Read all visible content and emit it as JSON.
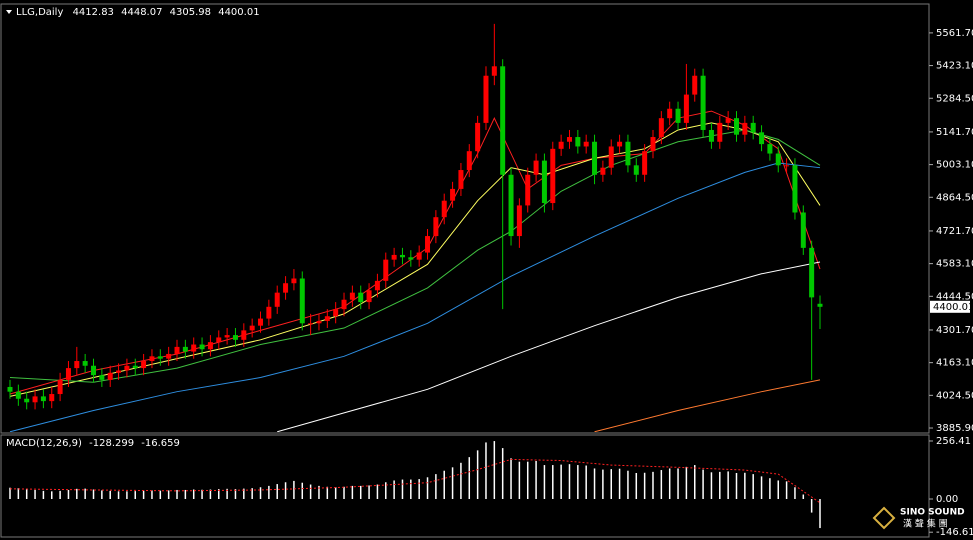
{
  "chart_data": {
    "type": "candlestick",
    "title": "LLG,Daily",
    "up_color": "#ff0000",
    "down_color": "#00c800",
    "open": [
      4060,
      4040,
      4010,
      3995,
      4020,
      4000,
      4030,
      4090,
      4140,
      4170,
      4150,
      4110,
      4090,
      4120,
      4130,
      4150,
      4140,
      4170,
      4190,
      4180,
      4200,
      4230,
      4210,
      4240,
      4220,
      4250,
      4270,
      4280,
      4260,
      4300,
      4320,
      4350,
      4400,
      4460,
      4500,
      4520,
      4330,
      4330,
      4340,
      4360,
      4390,
      4430,
      4460,
      4420,
      4470,
      4510,
      4600,
      4620,
      4610,
      4600,
      4630,
      4700,
      4780,
      4850,
      4900,
      4980,
      5060,
      5180,
      5380,
      5420,
      4960,
      4700,
      4830,
      4960,
      5020,
      4840,
      5070,
      5100,
      5120,
      5080,
      5100,
      4960,
      4990,
      5080,
      5100,
      5000,
      4960,
      5060,
      5120,
      5200,
      5240,
      5180,
      5300,
      5380,
      5150,
      5100,
      5180,
      5200,
      5130,
      5180,
      5140,
      5090,
      5050,
      5000,
      5000,
      4800,
      4650,
      4412.83
    ],
    "high": [
      4090,
      4070,
      4040,
      4050,
      4050,
      4060,
      4120,
      4170,
      4230,
      4200,
      4180,
      4140,
      4150,
      4160,
      4180,
      4180,
      4200,
      4220,
      4220,
      4230,
      4260,
      4260,
      4270,
      4270,
      4280,
      4300,
      4310,
      4310,
      4330,
      4350,
      4380,
      4430,
      4490,
      4530,
      4560,
      4550,
      4370,
      4370,
      4390,
      4420,
      4460,
      4490,
      4490,
      4500,
      4540,
      4630,
      4650,
      4650,
      4640,
      4660,
      4730,
      4810,
      4880,
      4930,
      5010,
      5090,
      5210,
      5420,
      5600,
      5450,
      4990,
      4860,
      4990,
      5050,
      5050,
      5100,
      5130,
      5150,
      5150,
      5130,
      5130,
      5020,
      5110,
      5130,
      5130,
      5030,
      5090,
      5150,
      5230,
      5270,
      5270,
      5430,
      5410,
      5410,
      5180,
      5210,
      5230,
      5230,
      5210,
      5210,
      5170,
      5120,
      5080,
      5030,
      5030,
      4830,
      4680,
      4448.07
    ],
    "low": [
      4010,
      3980,
      3965,
      3965,
      3970,
      3970,
      4000,
      4060,
      4110,
      4120,
      4080,
      4060,
      4060,
      4090,
      4100,
      4110,
      4110,
      4140,
      4150,
      4150,
      4170,
      4180,
      4180,
      4190,
      4190,
      4220,
      4240,
      4230,
      4230,
      4270,
      4290,
      4320,
      4370,
      4430,
      4470,
      4300,
      4280,
      4300,
      4310,
      4330,
      4360,
      4400,
      4390,
      4390,
      4440,
      4480,
      4570,
      4580,
      4570,
      4570,
      4600,
      4670,
      4750,
      4820,
      4870,
      4950,
      5030,
      5150,
      5340,
      4390,
      4660,
      4650,
      4800,
      4930,
      4800,
      4810,
      5040,
      5070,
      5050,
      5050,
      4920,
      4930,
      4960,
      5050,
      4970,
      4930,
      4930,
      5030,
      5090,
      5170,
      5150,
      5150,
      5270,
      5120,
      5070,
      5070,
      5150,
      5100,
      5100,
      5110,
      5060,
      5020,
      4970,
      4970,
      4770,
      4620,
      4090,
      4305.98
    ],
    "close": [
      4040,
      4010,
      3995,
      4020,
      4000,
      4030,
      4090,
      4140,
      4170,
      4150,
      4110,
      4090,
      4120,
      4130,
      4150,
      4140,
      4170,
      4190,
      4180,
      4200,
      4230,
      4210,
      4240,
      4220,
      4250,
      4270,
      4280,
      4260,
      4300,
      4320,
      4350,
      4400,
      4460,
      4500,
      4520,
      4330,
      4330,
      4340,
      4360,
      4390,
      4430,
      4460,
      4420,
      4470,
      4510,
      4600,
      4620,
      4610,
      4600,
      4630,
      4700,
      4780,
      4850,
      4900,
      4980,
      5060,
      5180,
      5380,
      5420,
      4960,
      4700,
      4830,
      4960,
      5020,
      4840,
      5070,
      5100,
      5120,
      5080,
      5100,
      4960,
      4990,
      5080,
      5100,
      5000,
      4960,
      5060,
      5120,
      5200,
      5240,
      5180,
      5300,
      5380,
      5150,
      5100,
      5180,
      5200,
      5130,
      5180,
      5140,
      5090,
      5050,
      5000,
      5000,
      4800,
      4650,
      4440,
      4400.01
    ],
    "ylim": [
      3869,
      5680
    ],
    "yticks": [
      {
        "value": 5561.7,
        "label": "5561.70"
      },
      {
        "value": 5423.1,
        "label": "5423.10"
      },
      {
        "value": 5284.5,
        "label": "5284.50"
      },
      {
        "value": 5141.7,
        "label": "5141.70"
      },
      {
        "value": 5003.1,
        "label": "5003.10"
      },
      {
        "value": 4864.5,
        "label": "4864.50"
      },
      {
        "value": 4721.7,
        "label": "4721.70"
      },
      {
        "value": 4583.1,
        "label": "4583.10"
      },
      {
        "value": 4444.5,
        "label": "4444.50"
      },
      {
        "value": 4301.7,
        "label": "4301.70"
      },
      {
        "value": 4163.1,
        "label": "4163.10"
      },
      {
        "value": 4024.5,
        "label": "4024.50"
      },
      {
        "value": 3885.9,
        "label": "3885.90"
      }
    ],
    "ma": [
      {
        "color": "#ff2020",
        "x": [
          0,
          10,
          20,
          30,
          40,
          50,
          56,
          58,
          62,
          66,
          70,
          76,
          80,
          84,
          88,
          92,
          97
        ],
        "values": [
          4030,
          4130,
          4200,
          4300,
          4400,
          4650,
          5050,
          5200,
          4900,
          5000,
          5030,
          5050,
          5200,
          5230,
          5170,
          5070,
          4560
        ]
      },
      {
        "color": "#ffff60",
        "x": [
          0,
          10,
          20,
          30,
          40,
          50,
          56,
          60,
          64,
          70,
          76,
          80,
          84,
          88,
          92,
          97
        ],
        "values": [
          4020,
          4100,
          4180,
          4260,
          4370,
          4580,
          4850,
          4990,
          4960,
          5030,
          5070,
          5150,
          5180,
          5150,
          5100,
          4830
        ]
      },
      {
        "color": "#40c040",
        "x": [
          0,
          10,
          20,
          30,
          40,
          50,
          56,
          60,
          66,
          72,
          80,
          88,
          92,
          97
        ],
        "values": [
          4100,
          4080,
          4140,
          4240,
          4310,
          4480,
          4640,
          4720,
          4890,
          5000,
          5100,
          5150,
          5110,
          5000
        ]
      },
      {
        "color": "#2e8ee0",
        "x": [
          0,
          10,
          20,
          30,
          40,
          50,
          60,
          70,
          80,
          88,
          92,
          97
        ],
        "values": [
          3870,
          3960,
          4040,
          4100,
          4190,
          4330,
          4530,
          4700,
          4860,
          4970,
          5010,
          4990
        ]
      },
      {
        "color": "#ffffff",
        "x": [
          32,
          40,
          50,
          60,
          70,
          80,
          90,
          97
        ],
        "values": [
          3870,
          3950,
          4050,
          4190,
          4320,
          4440,
          4540,
          4590
        ]
      },
      {
        "color": "#ff7a30",
        "x": [
          70,
          80,
          90,
          97
        ],
        "values": [
          3870,
          3960,
          4040,
          4090
        ]
      }
    ],
    "macd": {
      "title": "MACD(12,26,9)",
      "ylim": [
        -159,
        274
      ],
      "yticks": [
        256.41,
        {
          "value": 0,
          "label": "0.00"
        },
        -146.618
      ],
      "histogram": {
        "color": "#ffffff",
        "values": [
          50,
          48,
          45,
          40,
          36,
          34,
          36,
          40,
          45,
          46,
          42,
          38,
          36,
          34,
          34,
          35,
          37,
          38,
          37,
          38,
          40,
          40,
          42,
          41,
          42,
          44,
          45,
          44,
          46,
          48,
          52,
          58,
          66,
          74,
          80,
          72,
          64,
          58,
          54,
          52,
          54,
          58,
          58,
          60,
          64,
          74,
          82,
          86,
          86,
          88,
          96,
          110,
          125,
          140,
          160,
          185,
          215,
          250,
          256,
          225,
          180,
          165,
          165,
          168,
          150,
          150,
          152,
          154,
          150,
          148,
          135,
          130,
          132,
          134,
          125,
          115,
          116,
          120,
          128,
          135,
          135,
          142,
          150,
          130,
          118,
          120,
          122,
          115,
          116,
          110,
          100,
          92,
          82,
          78,
          52,
          20,
          -60,
          -128.299
        ]
      },
      "signal": {
        "color": "#ff2020",
        "x": [
          0,
          10,
          20,
          30,
          40,
          50,
          56,
          60,
          66,
          72,
          80,
          88,
          92,
          97
        ],
        "values": [
          45,
          40,
          36,
          40,
          52,
          72,
          130,
          175,
          170,
          150,
          140,
          128,
          110,
          -16.659
        ]
      }
    }
  },
  "watermark": {
    "text": "SINO SOUND",
    "subtext": "漢 聲 集 團"
  }
}
